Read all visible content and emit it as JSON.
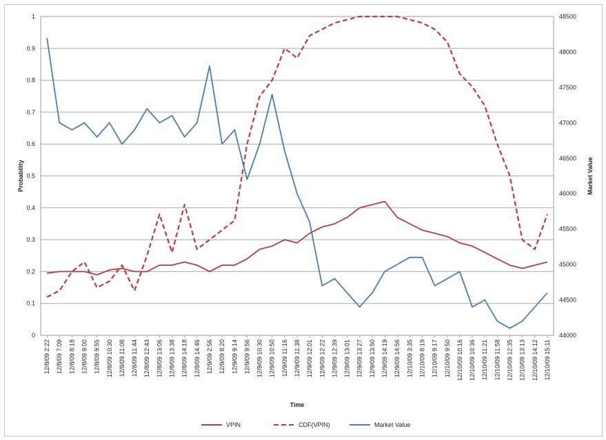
{
  "chart_data": {
    "type": "line",
    "xlabel": "Time",
    "ylabel": "Probability",
    "y2label": "Market Value",
    "ylim": [
      0,
      1
    ],
    "y2lim": [
      44000,
      48500
    ],
    "yticks": [
      "0",
      "0.1",
      "0.2",
      "0.3",
      "0.4",
      "0.5",
      "0.6",
      "0.7",
      "0.8",
      "0.9",
      "1"
    ],
    "y2ticks": [
      "44000",
      "44500",
      "45000",
      "45500",
      "46000",
      "46500",
      "47000",
      "47500",
      "48000",
      "48500"
    ],
    "grid": "horizontal",
    "legend_position": "bottom",
    "categories": [
      "12/8/09 2:22",
      "12/8/09 7:09",
      "12/8/09 8:18",
      "12/8/09 9:00",
      "12/8/09 9:55",
      "12/8/09 10:30",
      "12/8/09 11:08",
      "12/8/09 11:44",
      "12/8/09 12:43",
      "12/8/09 13:06",
      "12/8/09 13:38",
      "12/8/09 14:18",
      "12/8/09 14:46",
      "12/9/09 2:56",
      "12/9/09 8:20",
      "12/9/09 9:14",
      "12/9/09 9:56",
      "12/9/09 10:30",
      "12/9/09 10:50",
      "12/9/09 11:16",
      "12/9/09 11:38",
      "12/9/09 12:01",
      "12/9/09 12:22",
      "12/9/09 12:39",
      "12/9/09 13:01",
      "12/9/09 13:27",
      "12/9/09 13:50",
      "12/9/09 14:19",
      "12/9/09 14:56",
      "12/10/09 3:35",
      "12/10/09 8:19",
      "12/10/09 9:17",
      "12/10/09 9:50",
      "12/10/09 10:16",
      "12/10/09 10:36",
      "12/10/09 11:21",
      "12/10/09 11:58",
      "12/10/09 12:35",
      "12/10/09 13:13",
      "12/10/09 14:12",
      "12/10/09 15:11"
    ],
    "series": [
      {
        "name": "VPIN",
        "color": "#c0393b",
        "dash": "solid",
        "axis": "left",
        "values": [
          0.195,
          0.2,
          0.2,
          0.2,
          0.19,
          0.205,
          0.21,
          0.2,
          0.2,
          0.22,
          0.22,
          0.23,
          0.22,
          0.2,
          0.22,
          0.22,
          0.24,
          0.27,
          0.28,
          0.3,
          0.29,
          0.32,
          0.34,
          0.35,
          0.37,
          0.4,
          0.41,
          0.42,
          0.37,
          0.35,
          0.33,
          0.32,
          0.31,
          0.29,
          0.28,
          0.26,
          0.24,
          0.22,
          0.21,
          0.22,
          0.23
        ]
      },
      {
        "name": "CDF(VPIN)",
        "color": "#c0393b",
        "dash": "dashed",
        "axis": "left",
        "values": [
          0.12,
          0.14,
          0.2,
          0.23,
          0.15,
          0.17,
          0.22,
          0.14,
          0.25,
          0.38,
          0.26,
          0.41,
          0.27,
          0.3,
          0.33,
          0.36,
          0.6,
          0.75,
          0.8,
          0.9,
          0.87,
          0.94,
          0.96,
          0.98,
          0.99,
          1.0,
          1.0,
          1.0,
          1.0,
          0.99,
          0.98,
          0.96,
          0.92,
          0.82,
          0.78,
          0.72,
          0.6,
          0.5,
          0.3,
          0.27,
          0.38
        ]
      },
      {
        "name": "Market Value",
        "color": "#4a7ab8",
        "dash": "solid",
        "axis": "right",
        "values": [
          48200,
          47000,
          46900,
          47000,
          46800,
          47000,
          46700,
          46900,
          47200,
          47000,
          47100,
          46800,
          47000,
          47800,
          46700,
          46900,
          46200,
          46700,
          47400,
          46600,
          46000,
          45600,
          44700,
          44800,
          44600,
          44400,
          44600,
          44900,
          45000,
          45100,
          45100,
          44700,
          44800,
          44900,
          44400,
          44500,
          44200,
          44100,
          44200,
          44400,
          44600
        ]
      }
    ]
  }
}
